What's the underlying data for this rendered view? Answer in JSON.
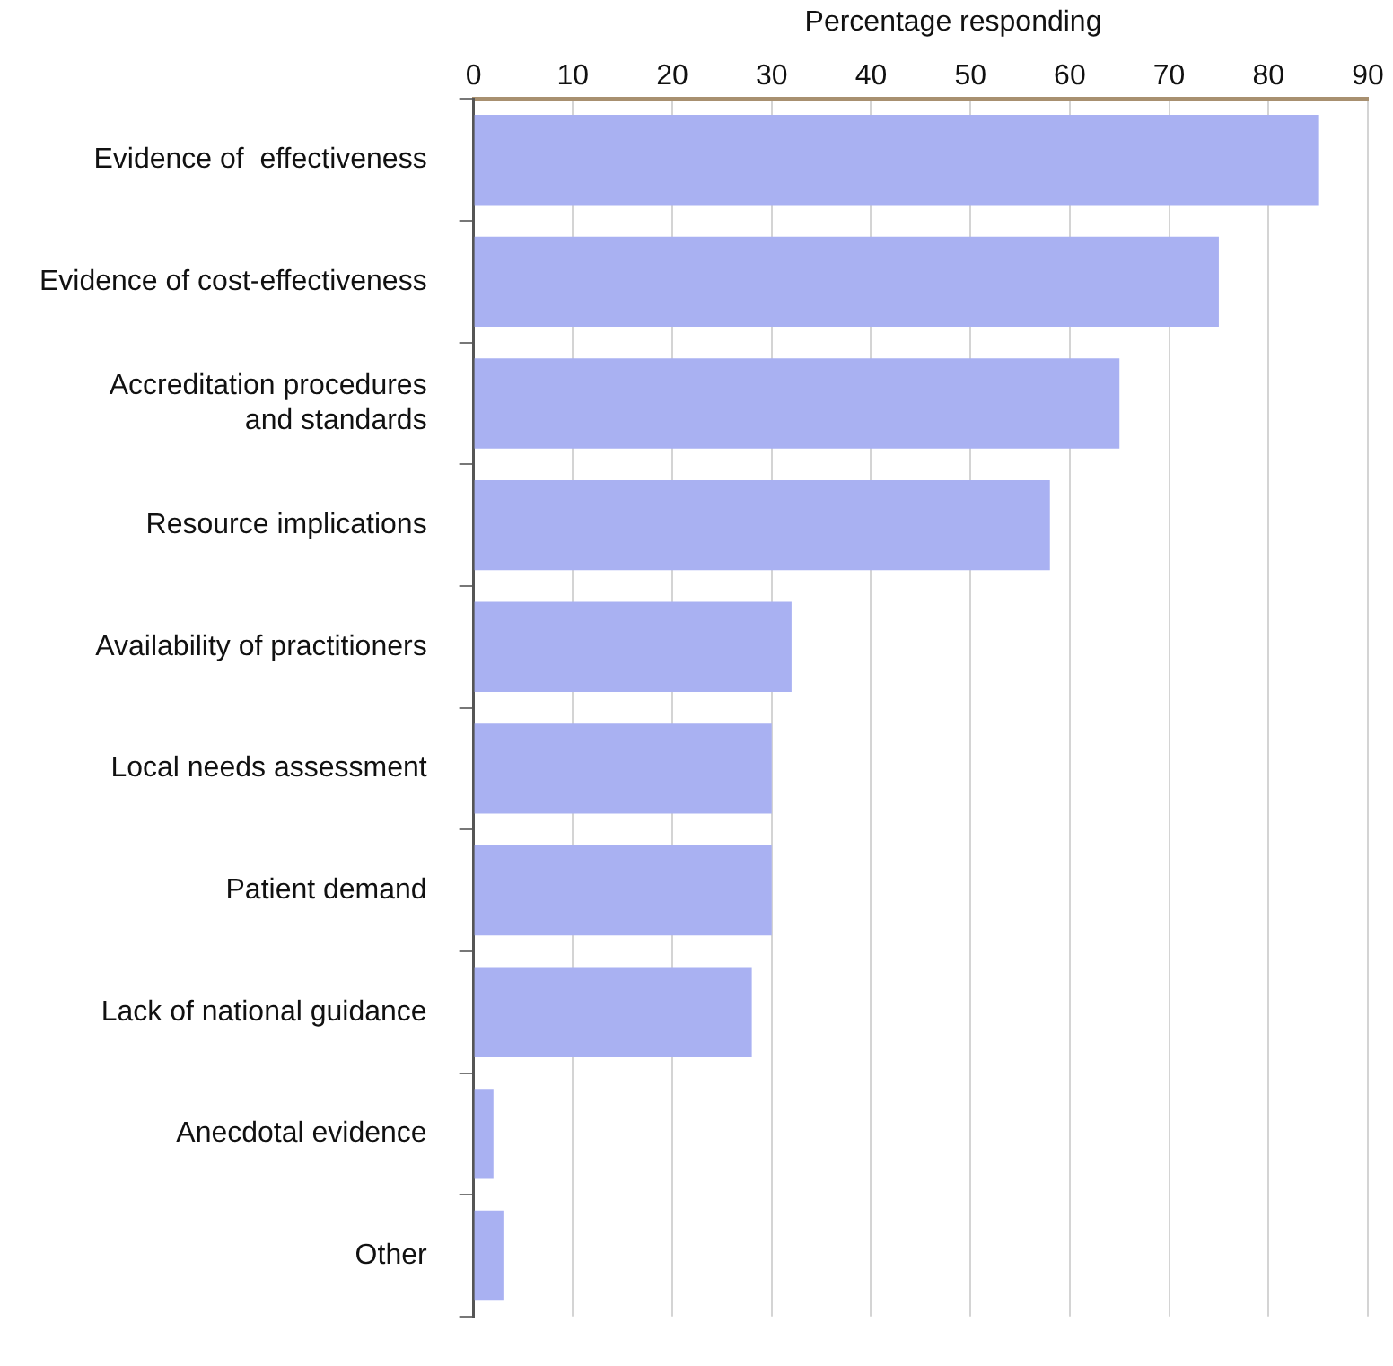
{
  "chart_data": {
    "type": "bar",
    "orientation": "horizontal",
    "title": "Percentage responding",
    "categories": [
      "Evidence of  effectiveness",
      "Evidence of cost-effectiveness",
      "Accreditation procedures and standards",
      "Resource implications",
      "Availability of practitioners",
      "Local needs assessment",
      "Patient demand",
      "Lack of national guidance",
      "Anecdotal evidence",
      "Other"
    ],
    "values": [
      85,
      75,
      65,
      58,
      32,
      30,
      30,
      28,
      2,
      3
    ],
    "color": "#a9b1f2",
    "xlim": [
      0,
      90
    ],
    "xticks": [
      0,
      10,
      20,
      30,
      40,
      50,
      60,
      70,
      80,
      90
    ],
    "grid": "x",
    "legend": false
  }
}
